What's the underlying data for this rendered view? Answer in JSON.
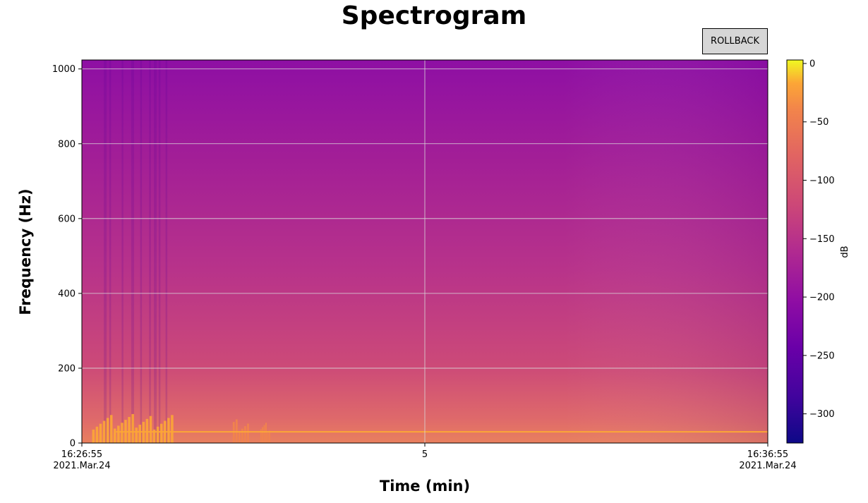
{
  "title": "Spectrogram",
  "button": {
    "label": "ROLLBACK"
  },
  "colors": {
    "grid": "#d9d9d9",
    "palette": "plasma"
  },
  "chart_data": {
    "type": "heatmap",
    "title": "Spectrogram",
    "xlabel": "Time (min)",
    "ylabel": "Frequency (Hz)",
    "xlim": [
      0,
      10
    ],
    "ylim": [
      0,
      1024
    ],
    "x_ticks": [
      {
        "value": 0,
        "line1": "16:26:55",
        "line2": "2021.Mar.24"
      },
      {
        "value": 5,
        "line1": "5",
        "line2": ""
      },
      {
        "value": 10,
        "line1": "16:36:55",
        "line2": "2021.Mar.24"
      }
    ],
    "y_ticks": [
      0,
      200,
      400,
      600,
      800,
      1000
    ],
    "grid": true,
    "colorbar": {
      "label": "dB",
      "range": [
        -325,
        3
      ],
      "ticks": [
        0,
        -50,
        -100,
        -150,
        -200,
        -250,
        -300
      ],
      "tick_labels": [
        "0",
        "−50",
        "−100",
        "−150",
        "−200",
        "−250",
        "−300"
      ]
    },
    "dominant_line": {
      "frequency": 30,
      "level_db": -30
    },
    "bursts": [
      {
        "start": 0.15,
        "end": 1.35,
        "max_frequency": 80,
        "level_db": -20
      },
      {
        "start": 2.2,
        "end": 2.45,
        "max_frequency": 70,
        "level_db": -40
      },
      {
        "start": 2.6,
        "end": 2.75,
        "max_frequency": 60,
        "level_db": -50
      }
    ]
  }
}
